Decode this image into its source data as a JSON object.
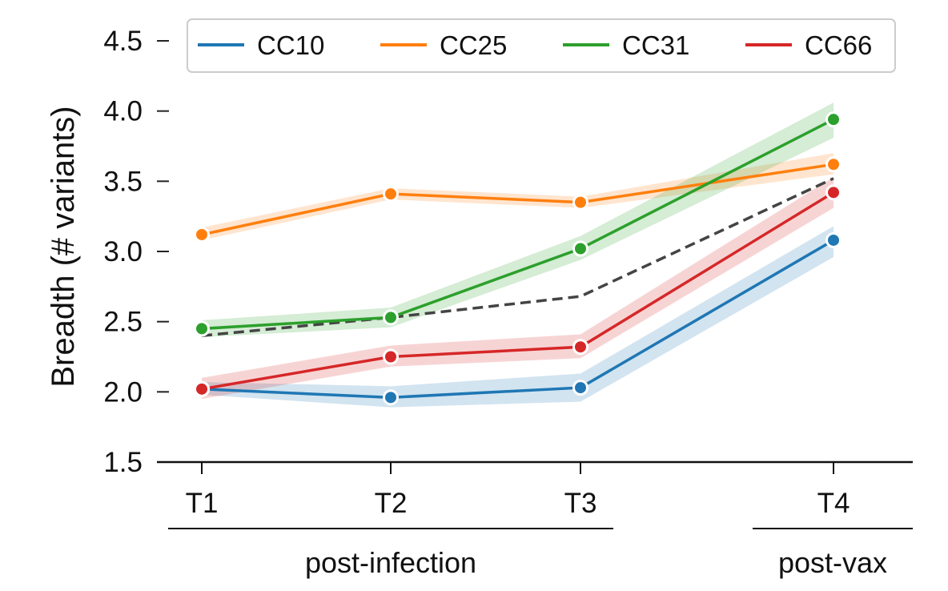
{
  "chart_data": {
    "type": "line",
    "x": [
      "T1",
      "T2",
      "T3",
      "T4"
    ],
    "xlabel": "",
    "ylabel": "Breadth (# variants)",
    "ylim": [
      1.5,
      4.5
    ],
    "yticks": [
      "1.5",
      "2.0",
      "2.5",
      "3.0",
      "3.5",
      "4.0",
      "4.5"
    ],
    "ytick_values": [
      1.5,
      2.0,
      2.5,
      3.0,
      3.5,
      4.0,
      4.5
    ],
    "groups": [
      {
        "label": "post-infection",
        "covers": [
          "T1",
          "T2",
          "T3"
        ]
      },
      {
        "label": "post-vax",
        "covers": [
          "T4"
        ]
      }
    ],
    "legend_position": "top",
    "grid": false,
    "series": [
      {
        "name": "CC10",
        "color": "#1f77b4",
        "values": [
          2.02,
          1.96,
          2.03,
          3.08
        ],
        "band_low": [
          1.98,
          1.89,
          1.93,
          2.96
        ],
        "band_high": [
          2.07,
          2.04,
          2.13,
          3.18
        ]
      },
      {
        "name": "CC25",
        "color": "#ff7f0e",
        "values": [
          3.12,
          3.41,
          3.35,
          3.62
        ],
        "band_low": [
          3.08,
          3.37,
          3.31,
          3.55
        ],
        "band_high": [
          3.17,
          3.45,
          3.39,
          3.7
        ]
      },
      {
        "name": "CC31",
        "color": "#2ca02c",
        "values": [
          2.45,
          2.53,
          3.02,
          3.94
        ],
        "band_low": [
          2.39,
          2.46,
          2.94,
          3.81
        ],
        "band_high": [
          2.51,
          2.6,
          3.11,
          4.06
        ]
      },
      {
        "name": "CC66",
        "color": "#d62728",
        "values": [
          2.02,
          2.25,
          2.32,
          3.42
        ],
        "band_low": [
          1.95,
          2.18,
          2.24,
          3.31
        ],
        "band_high": [
          2.1,
          2.33,
          2.41,
          3.53
        ]
      }
    ],
    "mean_line": {
      "color": "#444444",
      "style": "dashed",
      "values": [
        2.4,
        2.53,
        2.68,
        3.52
      ]
    }
  }
}
